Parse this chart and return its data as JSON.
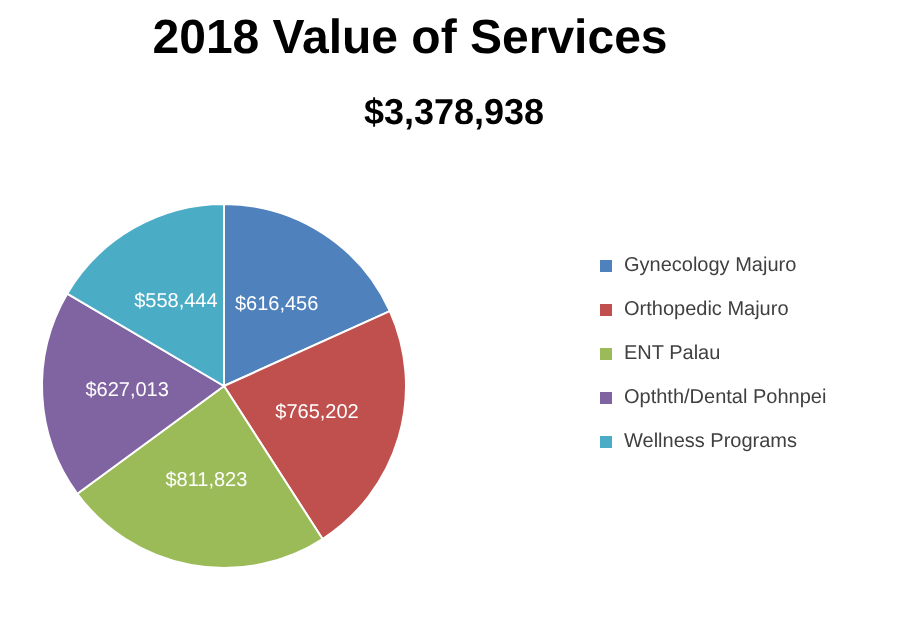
{
  "chart_data": {
    "type": "pie",
    "title": "2018 Value of Services",
    "subtitle": "$3,378,938",
    "categories": [
      "Gynecology Majuro",
      "Orthopedic Majuro",
      "ENT Palau",
      "Opthth/Dental Pohnpei",
      "Wellness Programs"
    ],
    "values": [
      616456,
      765202,
      811823,
      627013,
      558444
    ],
    "colors": [
      "#4f81bd",
      "#c0504d",
      "#9bbb59",
      "#8064a2",
      "#4bacc6"
    ],
    "value_labels": [
      "$616,456",
      "$765,202",
      "$811,823",
      "$627,013",
      "$558,444"
    ],
    "legend": "right"
  }
}
